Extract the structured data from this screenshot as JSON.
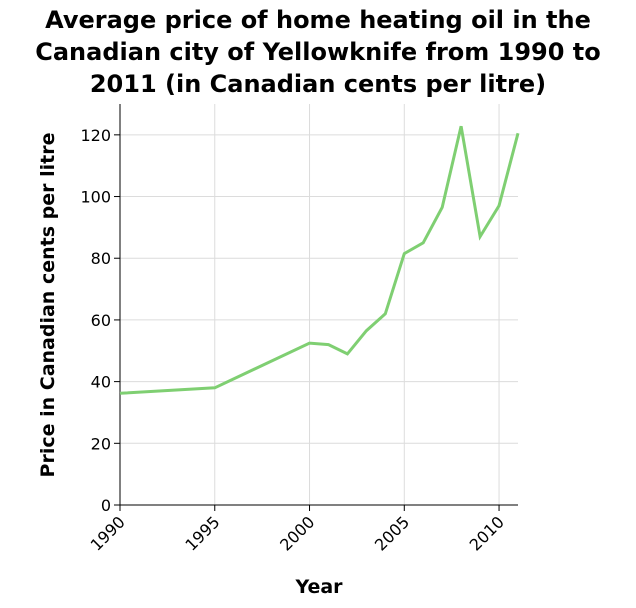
{
  "chart_data": {
    "type": "line",
    "title": "Average price of home heating oil in the Canadian city of Yellowknife from 1990 to 2011 (in Canadian cents per litre)",
    "title_lines": [
      "Average price of home heating oil in the",
      "Canadian city of Yellowknife from 1990 to",
      "2011 (in Canadian cents per litre)"
    ],
    "xlabel": "Year",
    "ylabel": "Price in Canadian cents per litre",
    "xlim": [
      1990,
      2011
    ],
    "ylim": [
      0,
      130
    ],
    "x_ticks": [
      1990,
      1995,
      2000,
      2005,
      2010
    ],
    "x_tick_labels": [
      "1990",
      "1995",
      "2000",
      "2005",
      "2010"
    ],
    "y_ticks": [
      0,
      20,
      40,
      60,
      80,
      100,
      120
    ],
    "y_tick_labels": [
      "0",
      "20",
      "40",
      "60",
      "80",
      "100",
      "120"
    ],
    "grid": true,
    "line_color": "#7fcf72",
    "series": [
      {
        "x": [
          1990,
          1995,
          2000,
          2001,
          2002,
          2003,
          2004,
          2005,
          2006,
          2007,
          2008,
          2009,
          2010,
          2011
        ],
        "values": [
          36.2,
          38,
          52.5,
          52,
          49,
          56.5,
          62,
          81.5,
          85,
          96.5,
          122.8,
          87,
          97,
          120.5
        ]
      }
    ]
  }
}
